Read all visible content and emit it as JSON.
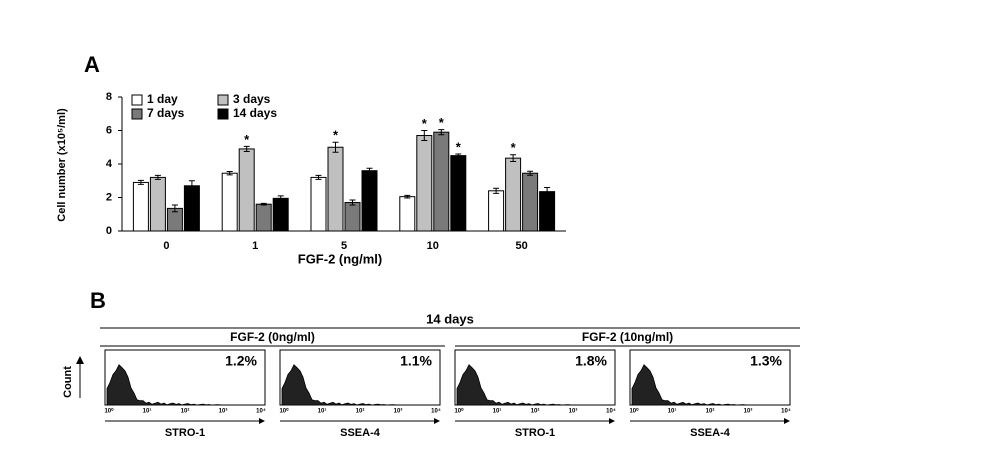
{
  "chart_data": {
    "type": "bar",
    "panel_label": "A",
    "y_label": "Cell number (x10⁵/ml)",
    "x_label": "FGF-2 (ng/ml)",
    "categories": [
      "0",
      "1",
      "5",
      "10",
      "50"
    ],
    "series": [
      {
        "name": "1 day",
        "color": "#ffffff",
        "values": [
          2.9,
          3.45,
          3.2,
          2.05,
          2.4
        ],
        "errors": [
          0.12,
          0.1,
          0.12,
          0.08,
          0.15
        ],
        "annotations": [
          null,
          null,
          null,
          null,
          null
        ]
      },
      {
        "name": "3 days",
        "color": "#c0c0c0",
        "values": [
          3.2,
          4.9,
          5.0,
          5.7,
          4.35
        ],
        "errors": [
          0.12,
          0.15,
          0.3,
          0.3,
          0.2
        ],
        "annotations": [
          null,
          "*",
          "*",
          "*",
          "*"
        ]
      },
      {
        "name": "7 days",
        "color": "#7a7a7a",
        "values": [
          1.35,
          1.6,
          1.7,
          5.9,
          3.45
        ],
        "errors": [
          0.2,
          0.05,
          0.15,
          0.15,
          0.12
        ],
        "annotations": [
          null,
          null,
          null,
          "*",
          null
        ]
      },
      {
        "name": "14 days",
        "color": "#000000",
        "values": [
          2.7,
          1.95,
          3.6,
          4.5,
          2.35
        ],
        "errors": [
          0.3,
          0.15,
          0.15,
          0.1,
          0.25
        ],
        "annotations": [
          null,
          null,
          null,
          "*",
          null
        ]
      }
    ],
    "ylim": [
      0,
      8
    ],
    "yticks": [
      0,
      2,
      4,
      6,
      8
    ],
    "legend": "top-left"
  },
  "panel_b": {
    "label": "B",
    "title": "14 days",
    "y_label": "Count",
    "x_tick_labels": [
      "10⁰",
      "10¹",
      "10²",
      "10³",
      "10⁴"
    ],
    "groups": [
      {
        "title": "FGF-2 (0ng/ml)",
        "plots": [
          {
            "percent": "1.2%",
            "marker": "STRO-1"
          },
          {
            "percent": "1.1%",
            "marker": "SSEA-4"
          }
        ]
      },
      {
        "title": "FGF-2 (10ng/ml)",
        "plots": [
          {
            "percent": "1.8%",
            "marker": "STRO-1"
          },
          {
            "percent": "1.3%",
            "marker": "SSEA-4"
          }
        ]
      }
    ]
  }
}
